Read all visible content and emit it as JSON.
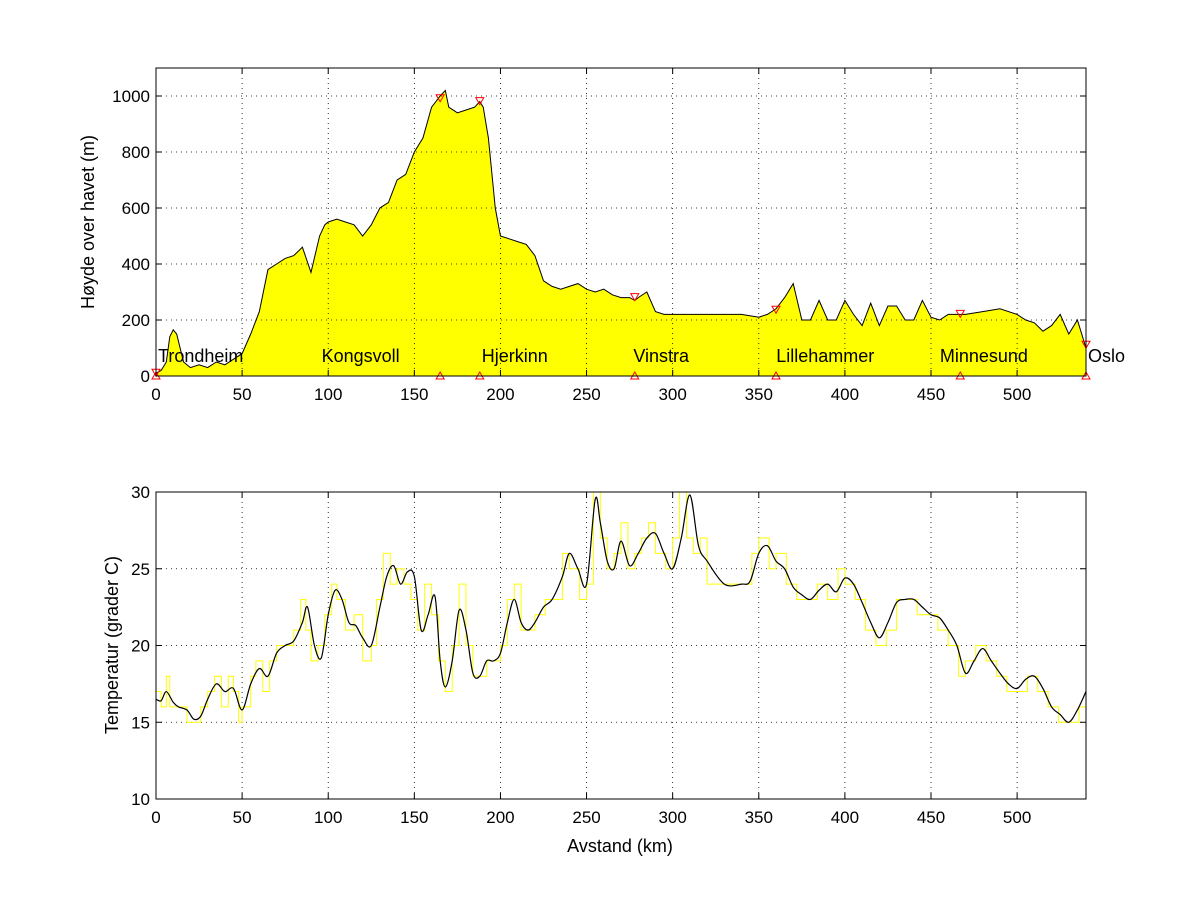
{
  "chart_data": [
    {
      "type": "area",
      "xlabel": "",
      "ylabel": "Høyde over havet (m)",
      "xlim": [
        0,
        540
      ],
      "ylim": [
        0,
        1100
      ],
      "grid": true,
      "xticks": [
        "0",
        "50",
        "100",
        "150",
        "200",
        "250",
        "300",
        "350",
        "400",
        "450",
        "500"
      ],
      "yticks": [
        "0",
        "200",
        "400",
        "600",
        "800",
        "1000"
      ],
      "fill_color": "#ffff00",
      "line_color": "#000000",
      "x": [
        0,
        3,
        6,
        8,
        10,
        12,
        14,
        16,
        20,
        25,
        30,
        35,
        40,
        45,
        50,
        55,
        60,
        65,
        70,
        75,
        80,
        85,
        90,
        95,
        98,
        100,
        105,
        110,
        115,
        120,
        125,
        130,
        135,
        140,
        145,
        150,
        155,
        160,
        165,
        168,
        170,
        175,
        180,
        185,
        188,
        190,
        193,
        197,
        200,
        205,
        210,
        215,
        220,
        225,
        230,
        235,
        240,
        245,
        250,
        255,
        260,
        265,
        270,
        275,
        278,
        280,
        285,
        290,
        295,
        300,
        310,
        320,
        330,
        340,
        350,
        355,
        360,
        365,
        370,
        375,
        380,
        385,
        390,
        395,
        400,
        405,
        410,
        415,
        420,
        425,
        430,
        435,
        440,
        445,
        450,
        455,
        460,
        465,
        470,
        480,
        490,
        500,
        505,
        510,
        515,
        520,
        525,
        530,
        535,
        540
      ],
      "y": [
        10,
        20,
        50,
        140,
        165,
        150,
        100,
        50,
        30,
        40,
        30,
        50,
        40,
        60,
        80,
        150,
        230,
        380,
        400,
        420,
        430,
        460,
        370,
        500,
        540,
        550,
        560,
        550,
        540,
        500,
        540,
        600,
        620,
        700,
        720,
        800,
        850,
        960,
        1000,
        1020,
        960,
        940,
        950,
        960,
        980,
        960,
        850,
        600,
        500,
        490,
        480,
        470,
        430,
        340,
        320,
        310,
        320,
        330,
        310,
        300,
        310,
        290,
        280,
        280,
        270,
        280,
        300,
        230,
        220,
        220,
        220,
        220,
        220,
        220,
        210,
        220,
        240,
        280,
        330,
        200,
        200,
        270,
        200,
        200,
        270,
        220,
        180,
        260,
        180,
        250,
        250,
        200,
        200,
        270,
        210,
        200,
        220,
        220,
        220,
        230,
        240,
        220,
        200,
        190,
        160,
        180,
        220,
        150,
        200,
        100
      ],
      "markers_top_x": [
        0,
        165,
        188,
        278,
        360,
        467,
        540
      ],
      "markers_top_y": [
        10,
        990,
        980,
        280,
        235,
        220,
        110
      ],
      "markers_bottom_x": [
        0,
        165,
        188,
        278,
        360,
        467,
        540
      ],
      "marker_color": "#ff0000",
      "stations": [
        {
          "name": "Trondheim",
          "x": 0
        },
        {
          "name": "Kongsvoll",
          "x": 95
        },
        {
          "name": "Hjerkinn",
          "x": 188
        },
        {
          "name": "Vinstra",
          "x": 276
        },
        {
          "name": "Lillehammer",
          "x": 359
        },
        {
          "name": "Minnesund",
          "x": 454
        },
        {
          "name": "Oslo",
          "x": 540
        }
      ]
    },
    {
      "type": "line",
      "xlabel": "Avstand (km)",
      "ylabel": "Temperatur (grader C)",
      "xlim": [
        0,
        540
      ],
      "ylim": [
        10,
        30
      ],
      "grid": true,
      "xticks": [
        "0",
        "50",
        "100",
        "150",
        "200",
        "250",
        "300",
        "350",
        "400",
        "450",
        "500"
      ],
      "yticks": [
        "10",
        "15",
        "20",
        "25",
        "30"
      ],
      "series": [
        {
          "color": "#000000",
          "x": [
            0,
            3,
            6,
            10,
            13,
            18,
            22,
            26,
            30,
            35,
            40,
            45,
            50,
            55,
            60,
            65,
            70,
            75,
            80,
            85,
            88,
            92,
            96,
            100,
            104,
            108,
            112,
            116,
            120,
            125,
            130,
            134,
            138,
            142,
            146,
            150,
            154,
            158,
            162,
            165,
            168,
            172,
            176,
            180,
            184,
            188,
            192,
            196,
            200,
            204,
            208,
            212,
            216,
            220,
            225,
            230,
            236,
            240,
            245,
            250,
            255,
            258,
            262,
            266,
            270,
            275,
            280,
            285,
            290,
            295,
            300,
            305,
            310,
            315,
            320,
            330,
            340,
            345,
            350,
            355,
            360,
            365,
            370,
            375,
            380,
            385,
            390,
            395,
            400,
            405,
            410,
            415,
            420,
            425,
            430,
            435,
            440,
            445,
            450,
            455,
            460,
            465,
            470,
            475,
            480,
            485,
            490,
            495,
            500,
            505,
            510,
            515,
            520,
            525,
            530,
            535,
            540
          ],
          "y": [
            16.5,
            16.4,
            17.0,
            16.3,
            16.0,
            15.8,
            15.2,
            15.4,
            16.5,
            17.5,
            17.0,
            17.2,
            15.8,
            17.5,
            18.5,
            18.0,
            19.5,
            20.0,
            20.3,
            21.5,
            22.5,
            20.0,
            19.2,
            22.0,
            23.6,
            23.0,
            21.5,
            21.3,
            20.5,
            20.0,
            22.5,
            24.5,
            25.2,
            24.0,
            24.8,
            24.5,
            21.0,
            22.0,
            23.2,
            19.0,
            17.3,
            19.0,
            22.3,
            21.0,
            18.2,
            18.0,
            19.0,
            19.0,
            19.5,
            21.5,
            23.0,
            21.5,
            21.0,
            21.5,
            22.5,
            23.0,
            24.5,
            26.0,
            25.0,
            24.0,
            29.5,
            28.0,
            25.5,
            25.0,
            26.8,
            25.2,
            26.0,
            27.0,
            27.3,
            26.0,
            25.0,
            27.0,
            29.8,
            26.5,
            25.5,
            24.0,
            24.0,
            24.2,
            26.0,
            26.5,
            25.5,
            25.0,
            23.8,
            23.3,
            23.0,
            23.6,
            24.0,
            23.5,
            24.4,
            24.0,
            22.8,
            21.5,
            20.5,
            21.5,
            22.8,
            23.0,
            23.0,
            22.5,
            22.0,
            21.8,
            21.0,
            20.0,
            18.2,
            19.0,
            19.8,
            19.0,
            18.2,
            17.5,
            17.2,
            17.8,
            18.0,
            17.2,
            16.0,
            15.5,
            15.0,
            15.8,
            17.0
          ]
        },
        {
          "color": "#ffff00",
          "x": [
            0,
            3,
            6,
            8,
            10,
            13,
            18,
            22,
            26,
            30,
            34,
            38,
            42,
            45,
            48,
            50,
            55,
            58,
            62,
            66,
            70,
            75,
            80,
            84,
            87,
            90,
            94,
            98,
            102,
            105,
            110,
            115,
            120,
            125,
            128,
            132,
            136,
            140,
            144,
            148,
            152,
            156,
            160,
            164,
            168,
            172,
            176,
            180,
            184,
            188,
            192,
            196,
            200,
            204,
            208,
            212,
            216,
            220,
            226,
            232,
            236,
            240,
            246,
            250,
            254,
            258,
            262,
            266,
            270,
            274,
            278,
            282,
            286,
            290,
            296,
            300,
            304,
            308,
            312,
            316,
            320,
            330,
            340,
            346,
            350,
            356,
            360,
            366,
            372,
            378,
            384,
            390,
            396,
            400,
            406,
            412,
            418,
            424,
            430,
            436,
            442,
            448,
            454,
            460,
            466,
            470,
            476,
            482,
            488,
            494,
            500,
            506,
            512,
            518,
            524,
            530,
            536,
            540
          ],
          "y": [
            17,
            16,
            18,
            16,
            16,
            16,
            15,
            15,
            16,
            17,
            18,
            16,
            18,
            17,
            15,
            16,
            18,
            19,
            17,
            19,
            20,
            20,
            21,
            23,
            21,
            19,
            20,
            22,
            24,
            23,
            21,
            22,
            19,
            20,
            23,
            26,
            24,
            25,
            24,
            23,
            21,
            24,
            22,
            19,
            17,
            20,
            24,
            20,
            18,
            18,
            19,
            19,
            20,
            23,
            24,
            21,
            21,
            22,
            23,
            23,
            26,
            25,
            23,
            24,
            30,
            27,
            25,
            26,
            28,
            25,
            26,
            27,
            28,
            26,
            25,
            27,
            30,
            27,
            26,
            27,
            24,
            24,
            24,
            26,
            27,
            25,
            26,
            24,
            23,
            23,
            24,
            23,
            25,
            24,
            23,
            21,
            20,
            21,
            23,
            23,
            22,
            22,
            21,
            20,
            18,
            19,
            20,
            19,
            18,
            17,
            17,
            18,
            17,
            16,
            15,
            15,
            16,
            17
          ]
        }
      ]
    }
  ]
}
